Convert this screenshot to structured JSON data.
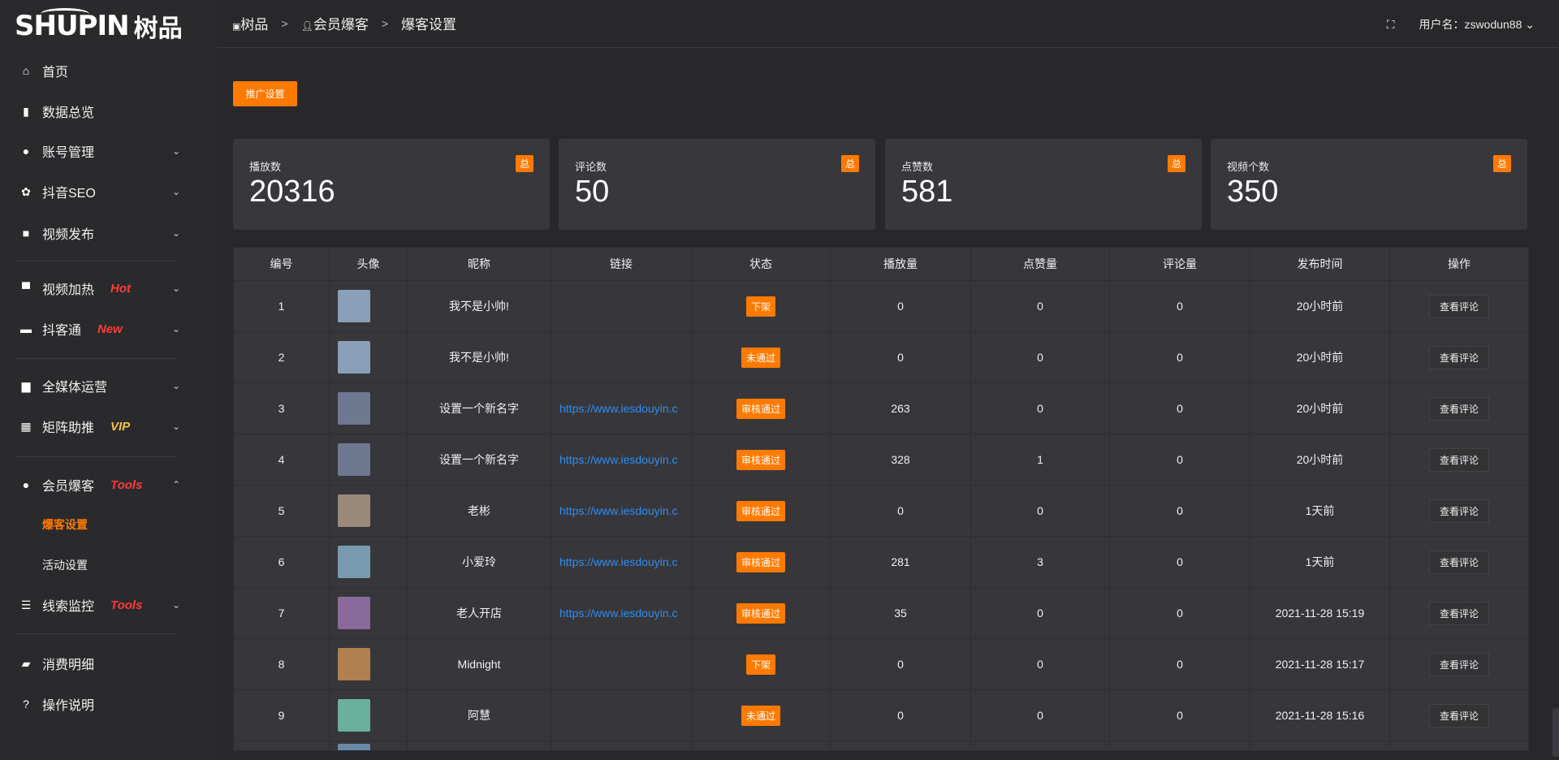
{
  "logo": {
    "text_en": "SHUPIN",
    "text_cn": "树品"
  },
  "sidebar": {
    "items": [
      {
        "label": "首页",
        "icon": "home-icon",
        "glyph": "⌂"
      },
      {
        "label": "数据总览",
        "icon": "bar-chart-icon",
        "glyph": "▮"
      },
      {
        "label": "账号管理",
        "icon": "user-icon",
        "glyph": "●",
        "chevron": "⌄"
      },
      {
        "label": "抖音SEO",
        "icon": "gear-icon",
        "glyph": "✿",
        "chevron": "⌄"
      },
      {
        "label": "视频发布",
        "icon": "camera-icon",
        "glyph": "■",
        "chevron": "⌄"
      },
      {
        "label": "视频加热",
        "icon": "sign-icon",
        "glyph": "▀",
        "chevron": "⌄",
        "tag": "Hot",
        "tag_color": "#ff3b3b"
      },
      {
        "label": "抖客通",
        "icon": "chat-icon",
        "glyph": "▬",
        "chevron": "⌄",
        "tag": "New",
        "tag_color": "#ff3b3b"
      },
      {
        "label": "全媒体运营",
        "icon": "monitor-icon",
        "glyph": "▆",
        "chevron": "⌄"
      },
      {
        "label": "矩阵助推",
        "icon": "grid-icon",
        "glyph": "▦",
        "chevron": "⌄",
        "tag": "VIP",
        "tag_color": "#f5c242"
      },
      {
        "label": "会员爆客",
        "icon": "user-icon",
        "glyph": "●",
        "chevron": "⌃",
        "tag": "Tools",
        "tag_color": "#ff3b3b"
      },
      {
        "label": "爆客设置",
        "sub": true,
        "active": true
      },
      {
        "label": "活动设置",
        "sub": true
      },
      {
        "label": "线索监控",
        "icon": "sliders-icon",
        "glyph": "☰",
        "chevron": "⌄",
        "tag": "Tools",
        "tag_color": "#ff3b3b"
      },
      {
        "label": "消费明细",
        "icon": "wallet-icon",
        "glyph": "▰"
      },
      {
        "label": "操作说明",
        "icon": "help-icon",
        "glyph": "?"
      }
    ]
  },
  "breadcrumb": [
    "树品",
    "会员爆客",
    "爆客设置"
  ],
  "header": {
    "user_label": "用户名：zswodun88"
  },
  "promo_button": "推广设置",
  "cards": [
    {
      "title": "播放数",
      "value": "20316",
      "badge": "总"
    },
    {
      "title": "评论数",
      "value": "50",
      "badge": "总"
    },
    {
      "title": "点赞数",
      "value": "581",
      "badge": "总"
    },
    {
      "title": "视频个数",
      "value": "350",
      "badge": "总"
    }
  ],
  "table": {
    "columns": [
      "编号",
      "头像",
      "昵称",
      "链接",
      "状态",
      "播放量",
      "点赞量",
      "评论量",
      "发布时间",
      "操作"
    ],
    "action_label": "查看评论",
    "rows": [
      {
        "id": "1",
        "avatar_color": "#8aa0b8",
        "nickname": "我不是小帅!",
        "link": "",
        "status": "下架",
        "plays": "0",
        "likes": "0",
        "comments": "0",
        "time": "20小时前"
      },
      {
        "id": "2",
        "avatar_color": "#8aa0b8",
        "nickname": "我不是小帅!",
        "link": "",
        "status": "未通过",
        "plays": "0",
        "likes": "0",
        "comments": "0",
        "time": "20小时前"
      },
      {
        "id": "3",
        "avatar_color": "#6e7890",
        "nickname": "设置一个新名字",
        "link": "https://www.iesdouyin.c",
        "status": "审核通过",
        "plays": "263",
        "likes": "0",
        "comments": "0",
        "time": "20小时前"
      },
      {
        "id": "4",
        "avatar_color": "#6e7890",
        "nickname": "设置一个新名字",
        "link": "https://www.iesdouyin.c",
        "status": "审核通过",
        "plays": "328",
        "likes": "1",
        "comments": "0",
        "time": "20小时前"
      },
      {
        "id": "5",
        "avatar_color": "#9a8a7a",
        "nickname": "老彬",
        "link": "https://www.iesdouyin.c",
        "status": "审核通过",
        "plays": "0",
        "likes": "0",
        "comments": "0",
        "time": "1天前"
      },
      {
        "id": "6",
        "avatar_color": "#7a9ab0",
        "nickname": "小爱玲",
        "link": "https://www.iesdouyin.c",
        "status": "审核通过",
        "plays": "281",
        "likes": "3",
        "comments": "0",
        "time": "1天前"
      },
      {
        "id": "7",
        "avatar_color": "#8a6a9a",
        "nickname": "老人开店",
        "link": "https://www.iesdouyin.c",
        "status": "审核通过",
        "plays": "35",
        "likes": "0",
        "comments": "0",
        "time": "2021-11-28 15:19"
      },
      {
        "id": "8",
        "avatar_color": "#b08050",
        "nickname": "Midnight",
        "link": "",
        "status": "下架",
        "plays": "0",
        "likes": "0",
        "comments": "0",
        "time": "2021-11-28 15:17"
      },
      {
        "id": "9",
        "avatar_color": "#6ab09a",
        "nickname": "阿慧",
        "link": "",
        "status": "未通过",
        "plays": "0",
        "likes": "0",
        "comments": "0",
        "time": "2021-11-28 15:16"
      }
    ]
  },
  "colors": {
    "accent": "#ff7a00",
    "link": "#2e8cf0"
  }
}
